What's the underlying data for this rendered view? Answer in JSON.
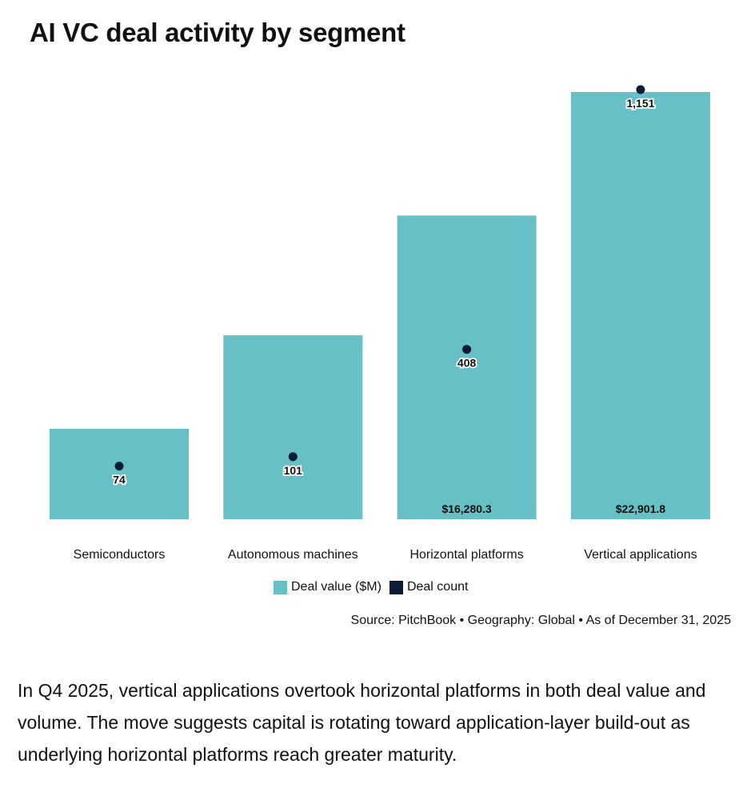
{
  "chart_data": {
    "type": "bar",
    "title": "AI VC deal activity by segment",
    "categories": [
      "Semiconductors",
      "Autonomous machines",
      "Horizontal platforms",
      "Vertical applications"
    ],
    "series": [
      {
        "name": "Deal value ($M)",
        "kind": "bar",
        "values": [
          4850,
          9860,
          16280.3,
          22901.8
        ],
        "labels": [
          "",
          "",
          "$16,280.3",
          "$22,901.8"
        ]
      },
      {
        "name": "Deal count",
        "kind": "point",
        "values": [
          74,
          101,
          408,
          1151
        ],
        "labels": [
          "74",
          "101",
          "408",
          "1,151"
        ]
      }
    ],
    "ylim_value": [
      0,
      22901.8
    ],
    "ylim_count": [
      0,
      1151
    ],
    "legend_position": "bottom-center",
    "colors": {
      "bar": "#67c0c5",
      "point": "#0d1b36"
    }
  },
  "source_note": "Source: PitchBook • Geography: Global • As of December 31, 2025",
  "caption": "In Q4 2025, vertical applications overtook horizontal platforms in both deal value and volume. The move suggests capital is rotating toward application-layer build-out as underlying horizontal platforms reach greater maturity."
}
